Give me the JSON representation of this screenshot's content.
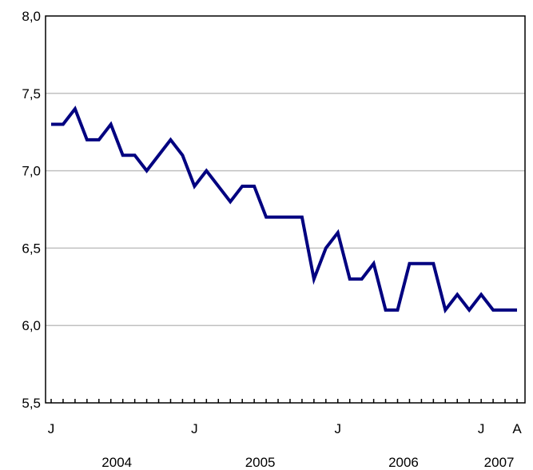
{
  "chart_data": {
    "type": "line",
    "title": "",
    "xlabel": "",
    "ylabel": "",
    "ylim": [
      5.5,
      8.0
    ],
    "y_ticks": [
      "8,0",
      "7,5",
      "7,0",
      "6,5",
      "6,0",
      "5,5"
    ],
    "y_tick_values": [
      8.0,
      7.5,
      7.0,
      6.5,
      6.0,
      5.5
    ],
    "grid": true,
    "x_start": "2004-01",
    "x_end": "2007-04",
    "month_letters": [
      {
        "index": 0,
        "label": "J"
      },
      {
        "index": 12,
        "label": "J"
      },
      {
        "index": 24,
        "label": "J"
      },
      {
        "index": 36,
        "label": "J"
      },
      {
        "index": 39,
        "label": "A"
      }
    ],
    "year_labels": [
      {
        "start": 0,
        "end": 11,
        "label": "2004"
      },
      {
        "start": 12,
        "end": 23,
        "label": "2005"
      },
      {
        "start": 24,
        "end": 35,
        "label": "2006"
      },
      {
        "start": 36,
        "end": 39,
        "label": "2007"
      }
    ],
    "series": [
      {
        "color": "#000080",
        "x": [
          "2004-01",
          "2004-02",
          "2004-03",
          "2004-04",
          "2004-05",
          "2004-06",
          "2004-07",
          "2004-08",
          "2004-09",
          "2004-10",
          "2004-11",
          "2004-12",
          "2005-01",
          "2005-02",
          "2005-03",
          "2005-04",
          "2005-05",
          "2005-06",
          "2005-07",
          "2005-08",
          "2005-09",
          "2005-10",
          "2005-11",
          "2005-12",
          "2006-01",
          "2006-02",
          "2006-03",
          "2006-04",
          "2006-05",
          "2006-06",
          "2006-07",
          "2006-08",
          "2006-09",
          "2006-10",
          "2006-11",
          "2006-12",
          "2007-01",
          "2007-02",
          "2007-03",
          "2007-04"
        ],
        "values": [
          7.3,
          7.3,
          7.4,
          7.2,
          7.2,
          7.3,
          7.1,
          7.1,
          7.0,
          7.1,
          7.2,
          7.1,
          6.9,
          7.0,
          6.9,
          6.8,
          6.9,
          6.9,
          6.7,
          6.7,
          6.7,
          6.7,
          6.3,
          6.5,
          6.6,
          6.3,
          6.3,
          6.4,
          6.1,
          6.1,
          6.4,
          6.4,
          6.4,
          6.1,
          6.2,
          6.1,
          6.2,
          6.1,
          6.1,
          6.1
        ]
      }
    ]
  }
}
